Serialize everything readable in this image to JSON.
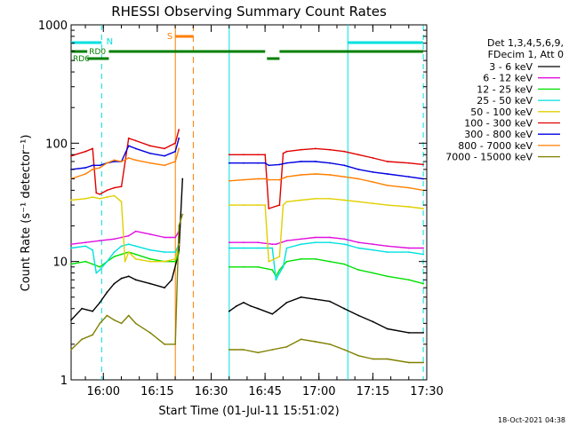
{
  "chart_data": {
    "type": "line",
    "title": "RHESSI Observing Summary Count Rates",
    "xlabel": "Start Time (01-Jul-11 15:51:02)",
    "ylabel": "Count Rate (s⁻¹ detector⁻¹)",
    "yscale": "log",
    "ylim": [
      1,
      1000
    ],
    "xlim": [
      "15:51:02",
      "17:30:00"
    ],
    "x_ticks": [
      "16:00",
      "16:15",
      "16:30",
      "16:45",
      "17:00",
      "17:15",
      "17:30"
    ],
    "y_ticks": [
      "1",
      "10",
      "100",
      "1000"
    ],
    "legend_header": [
      "Det 1,3,4,5,6,9,",
      "FDecim 1, Att 0"
    ],
    "legend_position": "right",
    "timestamp": "18-Oct-2021 04:38",
    "flags": {
      "night_label": "N",
      "saa_label": "S",
      "rd0_label": "RD0",
      "rd6_label": "RD6"
    },
    "series": [
      {
        "name": "3 - 6 keV",
        "color": "#000000",
        "values": [
          [
            0,
            3.2
          ],
          [
            3,
            4.0
          ],
          [
            6,
            3.8
          ],
          [
            8,
            4.5
          ],
          [
            10,
            5.5
          ],
          [
            12,
            6.5
          ],
          [
            14,
            7.2
          ],
          [
            16,
            7.5
          ],
          [
            18,
            7.0
          ],
          [
            22,
            6.5
          ],
          [
            26,
            6.0
          ],
          [
            28,
            7.0
          ],
          [
            30,
            12
          ],
          [
            31,
            50
          ],
          [
            44,
            3.8
          ],
          [
            46,
            4.2
          ],
          [
            48,
            4.5
          ],
          [
            50,
            4.2
          ],
          [
            52,
            4.0
          ],
          [
            56,
            3.6
          ],
          [
            57,
            3.8
          ],
          [
            60,
            4.5
          ],
          [
            64,
            5.0
          ],
          [
            68,
            4.8
          ],
          [
            72,
            4.6
          ],
          [
            76,
            4.0
          ],
          [
            80,
            3.5
          ],
          [
            84,
            3.1
          ],
          [
            88,
            2.7
          ],
          [
            94,
            2.5
          ],
          [
            98,
            2.5
          ]
        ]
      },
      {
        "name": "6 - 12 keV",
        "color": "#e010e0",
        "values": [
          [
            0,
            14
          ],
          [
            4,
            14.5
          ],
          [
            8,
            15
          ],
          [
            12,
            15.5
          ],
          [
            14,
            16
          ],
          [
            16,
            16.5
          ],
          [
            18,
            18
          ],
          [
            22,
            17
          ],
          [
            26,
            16
          ],
          [
            29,
            16
          ],
          [
            30,
            18
          ],
          [
            44,
            14.5
          ],
          [
            48,
            14.5
          ],
          [
            52,
            14.5
          ],
          [
            56,
            14
          ],
          [
            57,
            14
          ],
          [
            60,
            15
          ],
          [
            64,
            15.5
          ],
          [
            68,
            16
          ],
          [
            72,
            16
          ],
          [
            76,
            15.5
          ],
          [
            80,
            14.5
          ],
          [
            84,
            14
          ],
          [
            88,
            13.5
          ],
          [
            94,
            13
          ],
          [
            98,
            13
          ]
        ]
      },
      {
        "name": "12 - 25 keV",
        "color": "#00e000",
        "values": [
          [
            0,
            9.5
          ],
          [
            4,
            10
          ],
          [
            6,
            9.5
          ],
          [
            8,
            9.0
          ],
          [
            10,
            10
          ],
          [
            12,
            11
          ],
          [
            14,
            11.5
          ],
          [
            16,
            12
          ],
          [
            18,
            11.5
          ],
          [
            22,
            10.5
          ],
          [
            26,
            10
          ],
          [
            29,
            10
          ],
          [
            30,
            12
          ],
          [
            44,
            9.0
          ],
          [
            48,
            9.0
          ],
          [
            52,
            9.0
          ],
          [
            56,
            8.5
          ],
          [
            57,
            7.5
          ],
          [
            58,
            8.5
          ],
          [
            60,
            10
          ],
          [
            64,
            10.5
          ],
          [
            68,
            10.5
          ],
          [
            72,
            10
          ],
          [
            76,
            9.5
          ],
          [
            80,
            8.5
          ],
          [
            84,
            8.0
          ],
          [
            88,
            7.5
          ],
          [
            94,
            7.0
          ],
          [
            98,
            6.5
          ]
        ]
      },
      {
        "name": "25 - 50 keV",
        "color": "#00e0e0",
        "values": [
          [
            0,
            13
          ],
          [
            4,
            13.5
          ],
          [
            6,
            12.5
          ],
          [
            7,
            8
          ],
          [
            8,
            8.5
          ],
          [
            10,
            10
          ],
          [
            12,
            12
          ],
          [
            14,
            13.5
          ],
          [
            16,
            14
          ],
          [
            18,
            13.5
          ],
          [
            22,
            12.5
          ],
          [
            26,
            12
          ],
          [
            29,
            12
          ],
          [
            30,
            14
          ],
          [
            44,
            13
          ],
          [
            48,
            13
          ],
          [
            52,
            13
          ],
          [
            56,
            13
          ],
          [
            57,
            7.0
          ],
          [
            58,
            8
          ],
          [
            59,
            9
          ],
          [
            60,
            13
          ],
          [
            64,
            14
          ],
          [
            68,
            14.5
          ],
          [
            72,
            14.5
          ],
          [
            76,
            14
          ],
          [
            80,
            13
          ],
          [
            84,
            12.5
          ],
          [
            88,
            12
          ],
          [
            94,
            12
          ],
          [
            98,
            11.5
          ]
        ]
      },
      {
        "name": "50 - 100 keV",
        "color": "#e0d000",
        "values": [
          [
            0,
            33
          ],
          [
            4,
            34
          ],
          [
            6,
            35
          ],
          [
            8,
            34
          ],
          [
            10,
            35
          ],
          [
            12,
            36
          ],
          [
            14,
            32
          ],
          [
            15,
            10
          ],
          [
            16,
            12
          ],
          [
            18,
            10.5
          ],
          [
            22,
            10
          ],
          [
            26,
            10
          ],
          [
            29,
            10.5
          ],
          [
            30,
            14
          ],
          [
            44,
            30
          ],
          [
            48,
            30
          ],
          [
            52,
            30
          ],
          [
            54,
            30
          ],
          [
            55,
            10
          ],
          [
            58,
            11
          ],
          [
            59,
            30
          ],
          [
            60,
            32
          ],
          [
            64,
            33
          ],
          [
            68,
            34
          ],
          [
            72,
            34
          ],
          [
            76,
            33
          ],
          [
            80,
            32
          ],
          [
            84,
            31
          ],
          [
            88,
            30
          ],
          [
            94,
            29
          ],
          [
            98,
            28
          ]
        ]
      },
      {
        "name": "100 - 300 keV",
        "color": "#e00000",
        "values": [
          [
            0,
            78
          ],
          [
            4,
            85
          ],
          [
            6,
            90
          ],
          [
            7,
            38
          ],
          [
            8,
            37
          ],
          [
            10,
            40
          ],
          [
            12,
            42
          ],
          [
            14,
            43
          ],
          [
            16,
            110
          ],
          [
            18,
            105
          ],
          [
            22,
            95
          ],
          [
            26,
            90
          ],
          [
            29,
            100
          ],
          [
            30,
            130
          ],
          [
            44,
            80
          ],
          [
            48,
            80
          ],
          [
            52,
            80
          ],
          [
            54,
            80
          ],
          [
            55,
            28
          ],
          [
            58,
            30
          ],
          [
            59,
            82
          ],
          [
            60,
            85
          ],
          [
            64,
            88
          ],
          [
            68,
            90
          ],
          [
            72,
            88
          ],
          [
            76,
            85
          ],
          [
            80,
            80
          ],
          [
            84,
            75
          ],
          [
            88,
            70
          ],
          [
            94,
            68
          ],
          [
            98,
            66
          ]
        ]
      },
      {
        "name": "300 - 800 keV",
        "color": "#0000e0",
        "values": [
          [
            0,
            60
          ],
          [
            4,
            62
          ],
          [
            6,
            65
          ],
          [
            8,
            65
          ],
          [
            10,
            68
          ],
          [
            12,
            70
          ],
          [
            14,
            70
          ],
          [
            16,
            95
          ],
          [
            18,
            90
          ],
          [
            22,
            82
          ],
          [
            26,
            78
          ],
          [
            29,
            85
          ],
          [
            30,
            110
          ],
          [
            44,
            68
          ],
          [
            48,
            68
          ],
          [
            52,
            68
          ],
          [
            54,
            68
          ],
          [
            55,
            65
          ],
          [
            58,
            66
          ],
          [
            60,
            68
          ],
          [
            64,
            70
          ],
          [
            68,
            70
          ],
          [
            72,
            68
          ],
          [
            76,
            65
          ],
          [
            80,
            60
          ],
          [
            84,
            57
          ],
          [
            88,
            55
          ],
          [
            94,
            52
          ],
          [
            98,
            50
          ]
        ]
      },
      {
        "name": "800 - 7000 keV",
        "color": "#ff7f00",
        "values": [
          [
            0,
            50
          ],
          [
            4,
            55
          ],
          [
            6,
            60
          ],
          [
            8,
            62
          ],
          [
            10,
            68
          ],
          [
            12,
            72
          ],
          [
            14,
            70
          ],
          [
            16,
            75
          ],
          [
            18,
            72
          ],
          [
            22,
            68
          ],
          [
            26,
            65
          ],
          [
            29,
            70
          ],
          [
            30,
            90
          ],
          [
            44,
            48
          ],
          [
            48,
            49
          ],
          [
            52,
            50
          ],
          [
            54,
            50
          ],
          [
            55,
            49
          ],
          [
            58,
            49
          ],
          [
            60,
            52
          ],
          [
            64,
            54
          ],
          [
            68,
            55
          ],
          [
            72,
            54
          ],
          [
            76,
            52
          ],
          [
            80,
            50
          ],
          [
            84,
            47
          ],
          [
            88,
            44
          ],
          [
            94,
            42
          ],
          [
            98,
            40
          ]
        ]
      },
      {
        "name": "7000 - 15000 keV",
        "color": "#808000",
        "values": [
          [
            0,
            1.8
          ],
          [
            3,
            2.2
          ],
          [
            6,
            2.4
          ],
          [
            8,
            3.0
          ],
          [
            10,
            3.5
          ],
          [
            12,
            3.2
          ],
          [
            14,
            3.0
          ],
          [
            16,
            3.5
          ],
          [
            18,
            3.0
          ],
          [
            22,
            2.5
          ],
          [
            26,
            2.0
          ],
          [
            29,
            2.0
          ],
          [
            30,
            20
          ],
          [
            31,
            25
          ],
          [
            44,
            1.8
          ],
          [
            48,
            1.8
          ],
          [
            52,
            1.7
          ],
          [
            56,
            1.8
          ],
          [
            60,
            1.9
          ],
          [
            64,
            2.2
          ],
          [
            68,
            2.1
          ],
          [
            72,
            2.0
          ],
          [
            76,
            1.8
          ],
          [
            80,
            1.6
          ],
          [
            84,
            1.5
          ],
          [
            88,
            1.5
          ],
          [
            94,
            1.4
          ],
          [
            98,
            1.4
          ]
        ]
      }
    ]
  }
}
